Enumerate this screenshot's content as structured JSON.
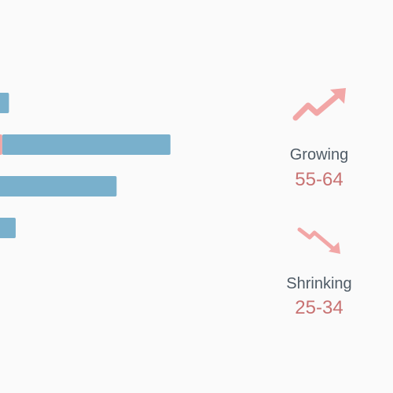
{
  "chart_data": {
    "type": "bar",
    "orientation": "horizontal",
    "categories": [
      "",
      "",
      "",
      ""
    ],
    "series": [
      {
        "color": "#f2a6a6",
        "values": [
          0,
          3,
          0,
          0
        ]
      },
      {
        "color": "#79b0cc",
        "values": [
          5,
          50,
          37,
          7
        ]
      }
    ],
    "xlim": [
      0,
      50
    ],
    "grid": false,
    "legend": "none"
  },
  "trends": {
    "growing": {
      "label": "Growing",
      "value": "55-64",
      "icon": "trend-up-arrow-icon"
    },
    "shrinking": {
      "label": "Shrinking",
      "value": "25-34",
      "icon": "trend-down-arrow-icon"
    }
  },
  "colors": {
    "bar_primary": "#79b0cc",
    "bar_accent": "#f2a6a6",
    "arrow": "#f2a6a6",
    "label": "#4f5b66",
    "value": "#c87272",
    "background": "#fafafa"
  }
}
